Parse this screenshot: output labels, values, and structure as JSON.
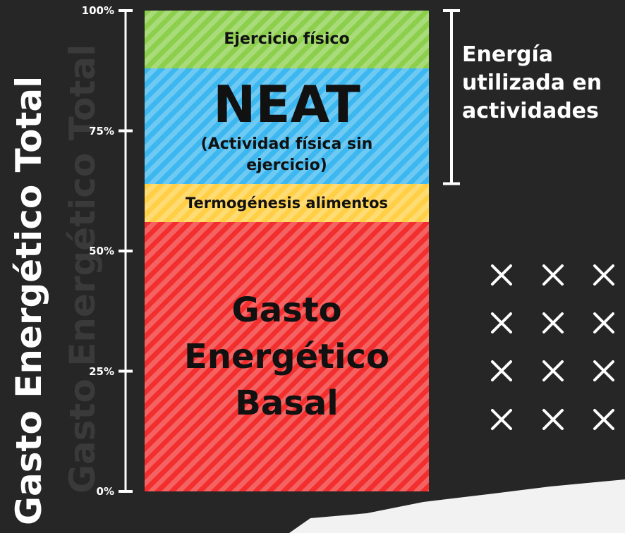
{
  "chart_data": {
    "type": "stacked_bar",
    "title": "Gasto Energético Total",
    "series": [
      {
        "name": "Gasto Energético Basal",
        "color": "#f22e2e",
        "values": [
          56
        ]
      },
      {
        "name": "Termogénesis alimentos",
        "color": "#ffcf45",
        "values": [
          8
        ]
      },
      {
        "name": "NEAT",
        "detail": "(Actividad física sin ejercicio)",
        "color": "#3db7ef",
        "values": [
          24
        ]
      },
      {
        "name": "Ejercicio físico",
        "color": "#8ccf4d",
        "values": [
          12
        ]
      }
    ],
    "annotation": "Energía utilizada en actividades",
    "ylim": [
      0,
      100
    ],
    "yticks": [
      {
        "value": 0,
        "label": "0%"
      },
      {
        "value": 25,
        "label": "25%"
      },
      {
        "value": 50,
        "label": "50%"
      },
      {
        "value": 75,
        "label": "75%"
      },
      {
        "value": 100,
        "label": "100%"
      }
    ]
  }
}
